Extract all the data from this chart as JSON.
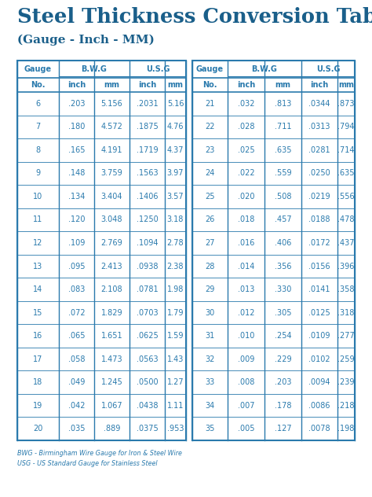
{
  "title_main": "Steel Thickness Conversion Table",
  "title_sub": "(Gauge - Inch - MM)",
  "title_color": "#1a5f8a",
  "table_color": "#2a7aad",
  "bg_color": "#ffffff",
  "footer1": "BWG - Birmingham Wire Gauge for Iron & Steel Wire",
  "footer2": "USG - US Standard Gauge for Stainless Steel",
  "left_data": [
    [
      "6",
      ".203",
      "5.156",
      ".2031",
      "5.16"
    ],
    [
      "7",
      ".180",
      "4.572",
      ".1875",
      "4.76"
    ],
    [
      "8",
      ".165",
      "4.191",
      ".1719",
      "4.37"
    ],
    [
      "9",
      ".148",
      "3.759",
      ".1563",
      "3.97"
    ],
    [
      "10",
      ".134",
      "3.404",
      ".1406",
      "3.57"
    ],
    [
      "11",
      ".120",
      "3.048",
      ".1250",
      "3.18"
    ],
    [
      "12",
      ".109",
      "2.769",
      ".1094",
      "2.78"
    ],
    [
      "13",
      ".095",
      "2.413",
      ".0938",
      "2.38"
    ],
    [
      "14",
      ".083",
      "2.108",
      ".0781",
      "1.98"
    ],
    [
      "15",
      ".072",
      "1.829",
      ".0703",
      "1.79"
    ],
    [
      "16",
      ".065",
      "1.651",
      ".0625",
      "1.59"
    ],
    [
      "17",
      ".058",
      "1.473",
      ".0563",
      "1.43"
    ],
    [
      "18",
      ".049",
      "1.245",
      ".0500",
      "1.27"
    ],
    [
      "19",
      ".042",
      "1.067",
      ".0438",
      "1.11"
    ],
    [
      "20",
      ".035",
      ".889",
      ".0375",
      ".953"
    ]
  ],
  "right_data": [
    [
      "21",
      ".032",
      ".813",
      ".0344",
      ".873"
    ],
    [
      "22",
      ".028",
      ".711",
      ".0313",
      ".794"
    ],
    [
      "23",
      ".025",
      ".635",
      ".0281",
      ".714"
    ],
    [
      "24",
      ".022",
      ".559",
      ".0250",
      ".635"
    ],
    [
      "25",
      ".020",
      ".508",
      ".0219",
      ".556"
    ],
    [
      "26",
      ".018",
      ".457",
      ".0188",
      ".478"
    ],
    [
      "27",
      ".016",
      ".406",
      ".0172",
      ".437"
    ],
    [
      "28",
      ".014",
      ".356",
      ".0156",
      ".396"
    ],
    [
      "29",
      ".013",
      ".330",
      ".0141",
      ".358"
    ],
    [
      "30",
      ".012",
      ".305",
      ".0125",
      ".318"
    ],
    [
      "31",
      ".010",
      ".254",
      ".0109",
      ".277"
    ],
    [
      "32",
      ".009",
      ".229",
      ".0102",
      ".259"
    ],
    [
      "33",
      ".008",
      ".203",
      ".0094",
      ".239"
    ],
    [
      "34",
      ".007",
      ".178",
      ".0086",
      ".218"
    ],
    [
      "35",
      ".005",
      ".127",
      ".0078",
      ".198"
    ]
  ]
}
